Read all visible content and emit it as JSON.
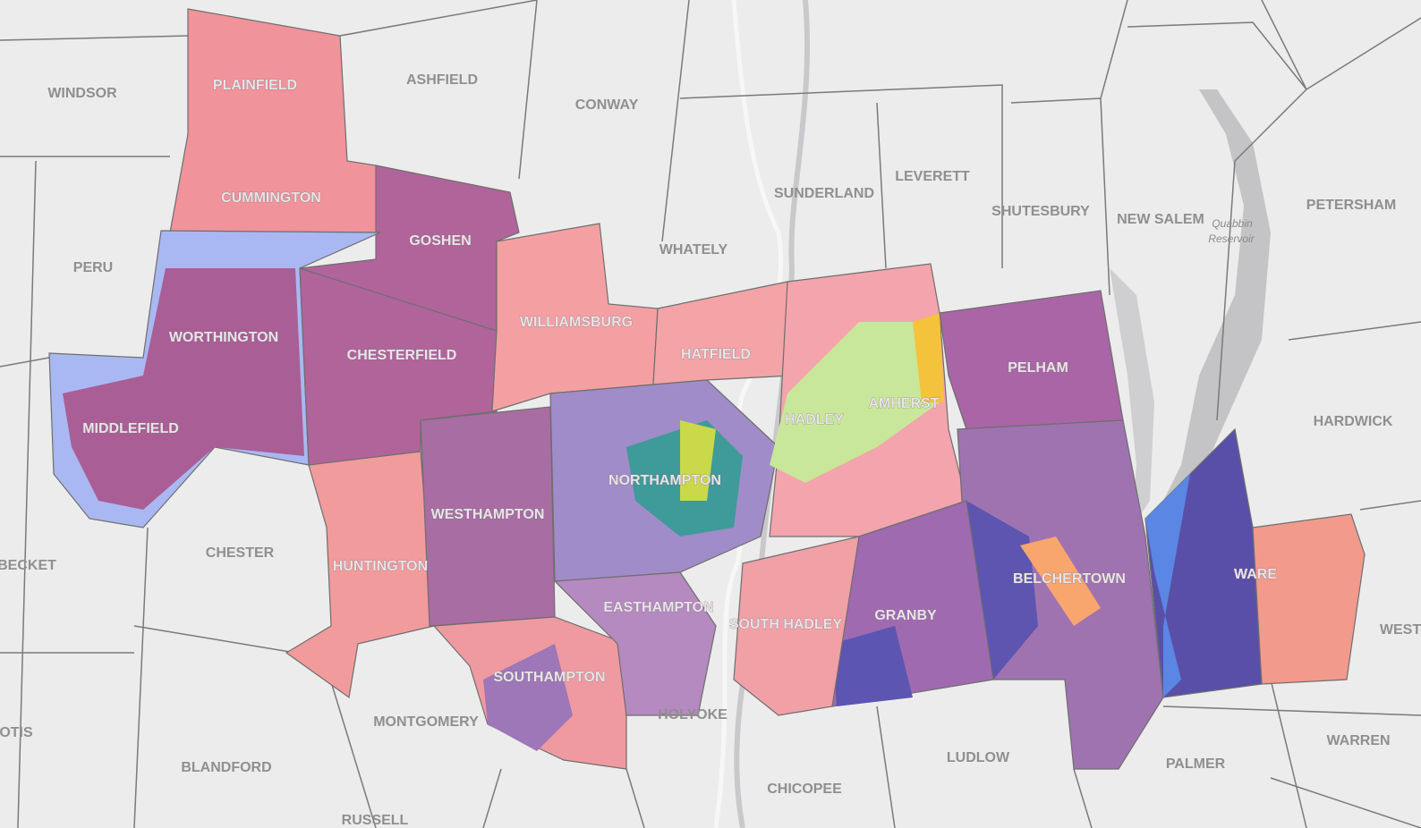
{
  "map": {
    "towns": [
      "WINDSOR",
      "ASHFIELD",
      "CONWAY",
      "PLAINFIELD",
      "CUMMINGTON",
      "GOSHEN",
      "SUNDERLAND",
      "LEVERETT",
      "SHUTESBURY",
      "NEW SALEM",
      "PETERSHAM",
      "PERU",
      "WHATELY",
      "WORTHINGTON",
      "CHESTERFIELD",
      "WILLIAMSBURG",
      "HATFIELD",
      "AMHERST",
      "PELHAM",
      "MIDDLEFIELD",
      "HADLEY",
      "HARDWICK",
      "NORTHAMPTON",
      "WESTHAMPTON",
      "CHESTER",
      "BECKET",
      "HUNTINGTON",
      "BELCHERTOWN",
      "WARE",
      "EASTHAMPTON",
      "SOUTH HADLEY",
      "GRANBY",
      "WEST",
      "SOUTHAMPTON",
      "HOLYOKE",
      "MONTGOMERY",
      "OTIS",
      "WARREN",
      "LUDLOW",
      "PALMER",
      "BLANDFORD",
      "CHICOPEE",
      "RUSSELL"
    ],
    "water_labels": [
      "Quabbin",
      "Reservoir"
    ]
  }
}
